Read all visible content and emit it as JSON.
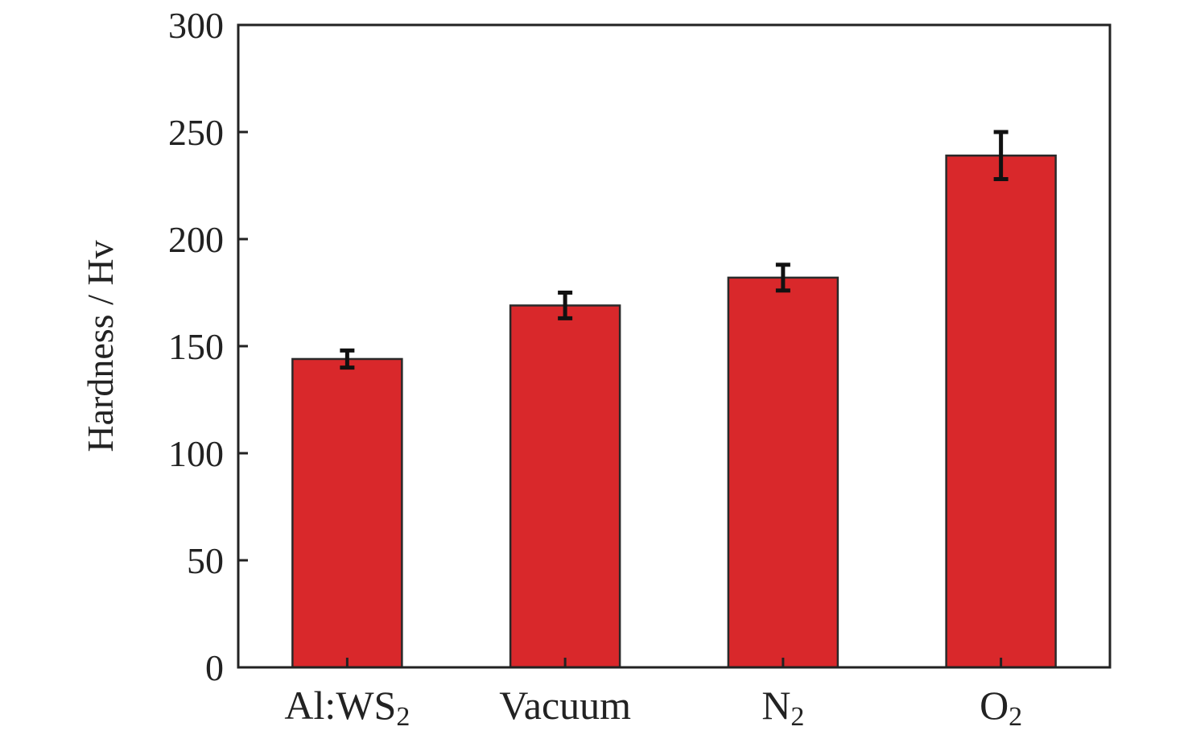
{
  "chart_data": {
    "type": "bar",
    "title": "",
    "xlabel": "",
    "ylabel": "Hardness / Hv",
    "ylim": [
      0,
      300
    ],
    "yticks": [
      "0",
      "50",
      "100",
      "150",
      "200",
      "250",
      "300"
    ],
    "grid": false,
    "categories": [
      {
        "main": "Al:WS",
        "sub": "2"
      },
      {
        "main": "Vacuum",
        "sub": ""
      },
      {
        "main": "N",
        "sub": "2"
      },
      {
        "main": "O",
        "sub": "2"
      }
    ],
    "values": [
      144,
      169,
      182,
      239
    ],
    "errors": [
      4,
      6,
      6,
      11
    ],
    "colors": {
      "bar": "#d9282b",
      "bar_edge": "#2a2a2a",
      "axis": "#222222"
    }
  }
}
